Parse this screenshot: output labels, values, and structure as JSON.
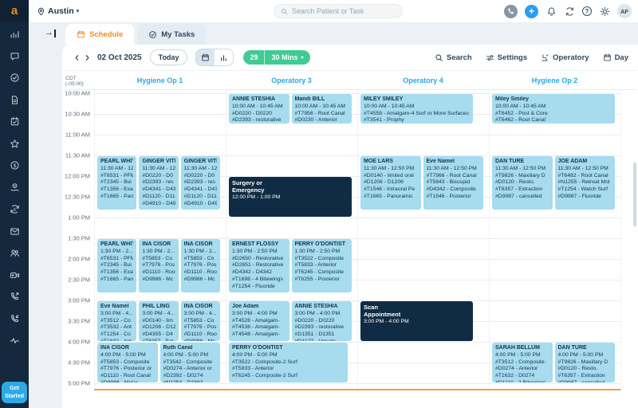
{
  "glyphs": {
    "caret_down": "▾",
    "collapse_arrow": "→"
  },
  "sidebar": {
    "logo": "a",
    "get_started": "Get Started",
    "icons": [
      "analytics",
      "chat",
      "tasks",
      "documents",
      "appointments",
      "reviews",
      "billing",
      "payments",
      "refunds",
      "messages",
      "patients",
      "video-call",
      "calls",
      "call-logs",
      "activity"
    ]
  },
  "header": {
    "location": "Austin",
    "search_placeholder": "Search Patient or Task",
    "add_label": "+",
    "help_label": "?",
    "avatar": "AF"
  },
  "tabs": {
    "schedule": "Schedule",
    "my_tasks": "My Tasks"
  },
  "toolbar": {
    "date": "02 Oct 2025",
    "today": "Today",
    "count_badge": "29",
    "interval": "30 Mins",
    "search": "Search",
    "settings": "Settings",
    "operatory": "Operatory",
    "day": "Day"
  },
  "colors": {
    "accent_orange": "#f28b1f",
    "card_blue": "#a7dbee",
    "dark_card": "#0f2c44",
    "column_header_blue": "#28a9e1",
    "green_pill": "#3fcb94",
    "now_line": "#f3a33c",
    "sidebar_navy": "#14293d"
  },
  "schedule": {
    "timezone": "CDT (-05:00)",
    "times": [
      "10:00 AM",
      "10:30 AM",
      "11:00 AM",
      "11:30 AM",
      "12:00 PM",
      "12:30 PM",
      "1:00 PM",
      "1:30 PM",
      "2:00 PM",
      "2:30 PM",
      "3:00 PM",
      "3:30 PM",
      "4:00 PM",
      "4:30 PM",
      "5:00 PM"
    ],
    "columns": [
      "Hygiene Op 1",
      "Operatory 3",
      "Operatory 4",
      "Hygiene Op 2"
    ],
    "now_line_min": 428,
    "appointments": [
      {
        "col": 0,
        "lane": 0,
        "lanes": 3,
        "start": 90,
        "end": 170,
        "name": "PEARL WHITE",
        "time": "11:30 AM - 12...",
        "procedures": [
          "#T6531 - PFM",
          "#T2345 - Bui",
          "#T1356 - Exa",
          "#T1665 - Pan"
        ]
      },
      {
        "col": 0,
        "lane": 1,
        "lanes": 3,
        "start": 90,
        "end": 170,
        "name": "GINGER VITIS",
        "time": "11:30 AM - 12...",
        "procedures": [
          "#D0220 - D0",
          "#D2393 - res",
          "#D4341 - D43",
          "#D1120 - D112",
          "#D4910 - D49"
        ]
      },
      {
        "col": 0,
        "lane": 2,
        "lanes": 3,
        "start": 90,
        "end": 170,
        "name": "GINGER VITIS",
        "time": "11:30 AM - 12...",
        "procedures": [
          "#D0220 - D0",
          "#D2393 - res",
          "#D4341 - D43",
          "#D1120 - D112",
          "#D4910 - D49"
        ]
      },
      {
        "col": 0,
        "lane": 0,
        "lanes": 3,
        "start": 210,
        "end": 290,
        "name": "PEARL WHITE",
        "time": "1:30 PM - 2...",
        "procedures": [
          "#T6531 - PFM",
          "#T2345 - Bui",
          "#T1356 - Exa",
          "#T1665 - Pan"
        ]
      },
      {
        "col": 0,
        "lane": 1,
        "lanes": 3,
        "start": 210,
        "end": 290,
        "name": "INA CISOR",
        "time": "1:30 PM - 2...",
        "procedures": [
          "#T5853 - Co",
          "#T7976 - Pos",
          "#D1110 - Root",
          "#D9986 - Mc"
        ]
      },
      {
        "col": 0,
        "lane": 2,
        "lanes": 3,
        "start": 210,
        "end": 290,
        "name": "INA CISOR",
        "time": "1:30 PM - 2...",
        "procedures": [
          "#T5853 - Co",
          "#T7976 - Pos",
          "#D1110 - Root",
          "#D9986 - Mc"
        ]
      },
      {
        "col": 0,
        "lane": 0,
        "lanes": 3,
        "start": 300,
        "end": 360,
        "name": "Eve Namel",
        "time": "3:00 PM - 4...",
        "procedures": [
          "#T3512 - Co",
          "#T3532 - Ant",
          "#T1254 - Co",
          "#T1632 - Ant"
        ]
      },
      {
        "col": 0,
        "lane": 1,
        "lanes": 3,
        "start": 300,
        "end": 360,
        "name": "PHIL LING",
        "time": "3:00 PM - 4...",
        "procedures": [
          "#D0140 - lim",
          "#D1206 - D12",
          "#D4355 - D4",
          "#T6357 - Ext"
        ]
      },
      {
        "col": 0,
        "lane": 2,
        "lanes": 3,
        "start": 300,
        "end": 360,
        "name": "INA CISOR",
        "time": "3:00 PM - 4...",
        "procedures": [
          "#T5853 - Co",
          "#T7976 - Pos",
          "#D1110 - Root",
          "#D9986 - Mc"
        ]
      },
      {
        "col": 0,
        "lane": 0,
        "lanes": 2,
        "start": 360,
        "end": 420,
        "name": "INA CISOR",
        "time": "4:00 PM - 5:00 PM",
        "procedures": [
          "#T5853 - Composite",
          "#T7976 - Posterior or",
          "#D1110 - Root Canal",
          "#D9986 - Molar"
        ]
      },
      {
        "col": 0,
        "lane": 1,
        "lanes": 2,
        "start": 360,
        "end": 420,
        "name": "Ruth Canal",
        "time": "4:00 PM - 5:00 PM",
        "procedures": [
          "#T3542 - Composite",
          "#D0274 - Anterior or",
          "#D2392 - D0274",
          "#N1254 - D2392"
        ]
      },
      {
        "col": 1,
        "lane": 0,
        "lanes": 2,
        "start": 0,
        "end": 45,
        "name": "ANNIE STESHIA",
        "time": "10:00 AM - 10:45 AM",
        "procedures": [
          "#D0220 - D0220",
          "#D2393 - restorative"
        ]
      },
      {
        "col": 1,
        "lane": 1,
        "lanes": 2,
        "start": 0,
        "end": 45,
        "name": "Mandi BILL",
        "time": "10:00 AM - 10:45 AM",
        "procedures": [
          "#T7956 - Root Canal",
          "#D0230 - Anterior"
        ]
      },
      {
        "col": 1,
        "lane": 0,
        "lanes": 1,
        "start": 120,
        "end": 180,
        "name": "Surgery or Emergency",
        "time": "12:00 PM - 1:00 PM",
        "procedures": [],
        "dark": true
      },
      {
        "col": 1,
        "lane": 0,
        "lanes": 2,
        "start": 210,
        "end": 290,
        "name": "ERNEST FLOSSY",
        "time": "1:30 PM - 2:50 PM",
        "procedures": [
          "#D2650 - Restorative",
          "#D2651 - Restorative",
          "#D4342 - D4342",
          "#T1698 - 4 Bitewings",
          "#T1254 - Fluoride"
        ]
      },
      {
        "col": 1,
        "lane": 1,
        "lanes": 2,
        "start": 210,
        "end": 290,
        "name": "PERRY O'DONTIST",
        "time": "1:30 PM - 2:50 PM",
        "procedures": [
          "#T3522 - Composite",
          "#T5833 - Anterior",
          "#T6245 - Composite",
          "#T6255 - Posterior"
        ]
      },
      {
        "col": 1,
        "lane": 0,
        "lanes": 2,
        "start": 300,
        "end": 360,
        "name": "Joe Adam",
        "time": "3:00 PM - 4:00 PM",
        "procedures": [
          "#T4528 - Amalgam-",
          "#T4538 - Amalgam-",
          "#T4548 - Amalgam-"
        ]
      },
      {
        "col": 1,
        "lane": 1,
        "lanes": 2,
        "start": 300,
        "end": 360,
        "name": "ANNIE STESHIA",
        "time": "3:00 PM - 4:00 PM",
        "procedures": [
          "#D0220 - D0220",
          "#D2393 - restorative",
          "#D1351 - D1351",
          "#D4127 - Uncate"
        ]
      },
      {
        "col": 1,
        "lane": 0,
        "lanes": 1,
        "start": 360,
        "end": 420,
        "name": "PERRY O'DONTIST",
        "time": "4:00 PM - 5:00 PM",
        "procedures": [
          "#T3522 - Composite-2 Surf",
          "#T5833 - Anterior",
          "#T6245 - Composite-2 Surf"
        ],
        "wf": 0.95
      },
      {
        "col": 2,
        "lane": 0,
        "lanes": 1,
        "start": 0,
        "end": 45,
        "name": "MILEY SMILEY",
        "time": "10:00 AM - 10:45 AM",
        "procedures": [
          "#T4558 - Amalgam-4 Surf or More Surfaces",
          "#T3541 - Prophy"
        ],
        "wf": 0.9
      },
      {
        "col": 2,
        "lane": 0,
        "lanes": 2,
        "start": 90,
        "end": 170,
        "name": "MOE LARS",
        "time": "11:30 AM - 12:50 PM",
        "procedures": [
          "#D0140 - limited oral",
          "#D1206 - D1206",
          "#T1546 - Intraoral Pe",
          "#T1665 - Panoramic"
        ]
      },
      {
        "col": 2,
        "lane": 1,
        "lanes": 2,
        "start": 90,
        "end": 170,
        "name": "Eve Namel",
        "time": "11:30 AM - 12:50 PM",
        "procedures": [
          "#T7966 - Root Canal",
          "#T5843 - Bicuspid",
          "#D4342 - Composite",
          "#T1546 - Posterior"
        ]
      },
      {
        "col": 2,
        "lane": 0,
        "lanes": 1,
        "start": 300,
        "end": 360,
        "name": "Scan Appointment",
        "time": "3:00 PM - 4:00 PM",
        "procedures": [],
        "dark": true,
        "wf": 0.9
      },
      {
        "col": 3,
        "lane": 0,
        "lanes": 1,
        "start": 0,
        "end": 45,
        "name": "Miley Smiley",
        "time": "10:00 AM - 10:45 AM",
        "procedures": [
          "#T6452 - Post & Core",
          "#T6462 - Root Canal"
        ]
      },
      {
        "col": 3,
        "lane": 0,
        "lanes": 2,
        "start": 90,
        "end": 170,
        "name": "DAN TURE",
        "time": "11:30 AM - 12:50 PM",
        "procedures": [
          "#T9826 - Maxillary D",
          "#D0120 - Resto.",
          "#T6357 - Extraction",
          "#D9987 - cancelled"
        ]
      },
      {
        "col": 3,
        "lane": 1,
        "lanes": 2,
        "start": 90,
        "end": 170,
        "name": "JOE ADAM",
        "time": "11:30 AM - 12:50 PM",
        "procedures": [
          "#T6482 - Root Canal",
          "#N1255 - Retreat Mol",
          "#T1254 - Watch Surf",
          "#D9987 - Fluoride"
        ]
      },
      {
        "col": 3,
        "lane": 0,
        "lanes": 2,
        "start": 360,
        "end": 420,
        "name": "SARAH BELLUM",
        "time": "4:00 PM - 5:00 PM",
        "procedures": [
          "#T3512 - Composite-",
          "#D0274 - Anterior",
          "#T1632 - D0274",
          "#D1110 - 2 Bitewings"
        ]
      },
      {
        "col": 3,
        "lane": 1,
        "lanes": 2,
        "start": 360,
        "end": 420,
        "name": "DAN TURE",
        "time": "4:00 PM - 5:00 PM",
        "procedures": [
          "#T9826 - Maxillary D",
          "#D0120 - Resto.",
          "#T6357 - Extraction",
          "#D9987 - cancelled"
        ]
      }
    ]
  }
}
